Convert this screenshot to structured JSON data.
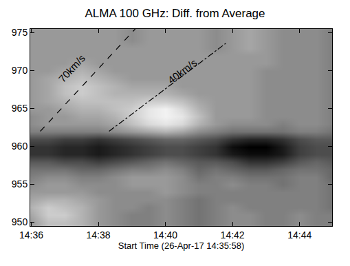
{
  "chart_data": {
    "type": "heatmap",
    "title": "ALMA 100 GHz: Diff. from Average",
    "x_label": "Start Time (26-Apr-17 14:35:58)",
    "color": "gray",
    "grid": false,
    "xlim": [
      35.97,
      44.97
    ],
    "ylim": [
      949.5,
      975.5
    ],
    "xticks": [
      {
        "value": 36,
        "label": "14:36"
      },
      {
        "value": 38,
        "label": "14:38"
      },
      {
        "value": 40,
        "label": "14:40"
      },
      {
        "value": 42,
        "label": "14:42"
      },
      {
        "value": 44,
        "label": "14:44"
      }
    ],
    "yticks": [
      950,
      955,
      960,
      965,
      970,
      975
    ],
    "zlim": [
      0,
      1
    ],
    "x": [
      36,
      36.5,
      37,
      37.5,
      38,
      38.5,
      39,
      39.5,
      40,
      40.5,
      41,
      41.5,
      42,
      42.5,
      43,
      43.5,
      44,
      44.5,
      45
    ],
    "y": [
      950,
      951,
      952,
      953,
      954,
      955,
      956,
      957,
      958,
      959,
      960,
      961,
      962,
      963,
      964,
      965,
      966,
      967,
      968,
      969,
      970,
      971,
      972,
      973,
      974,
      975
    ],
    "cells": [
      [
        0.6,
        0.75,
        0.75,
        0.7,
        0.6,
        0.55,
        0.5,
        0.5,
        0.55,
        0.5,
        0.45,
        0.5,
        0.55,
        0.55,
        0.5,
        0.5,
        0.55,
        0.5,
        0.5
      ],
      [
        0.65,
        0.8,
        0.8,
        0.7,
        0.6,
        0.55,
        0.5,
        0.5,
        0.55,
        0.5,
        0.45,
        0.5,
        0.55,
        0.55,
        0.5,
        0.5,
        0.55,
        0.5,
        0.5
      ],
      [
        0.7,
        0.8,
        0.75,
        0.7,
        0.6,
        0.55,
        0.55,
        0.5,
        0.55,
        0.5,
        0.45,
        0.5,
        0.55,
        0.5,
        0.5,
        0.5,
        0.5,
        0.5,
        0.45
      ],
      [
        0.65,
        0.7,
        0.7,
        0.65,
        0.6,
        0.55,
        0.55,
        0.55,
        0.55,
        0.5,
        0.45,
        0.5,
        0.5,
        0.5,
        0.5,
        0.5,
        0.5,
        0.5,
        0.45
      ],
      [
        0.6,
        0.6,
        0.6,
        0.6,
        0.55,
        0.55,
        0.55,
        0.55,
        0.6,
        0.55,
        0.5,
        0.5,
        0.5,
        0.5,
        0.5,
        0.5,
        0.5,
        0.5,
        0.45
      ],
      [
        0.55,
        0.6,
        0.6,
        0.55,
        0.55,
        0.55,
        0.6,
        0.6,
        0.6,
        0.55,
        0.5,
        0.5,
        0.55,
        0.5,
        0.5,
        0.45,
        0.5,
        0.5,
        0.45
      ],
      [
        0.5,
        0.55,
        0.55,
        0.5,
        0.5,
        0.55,
        0.6,
        0.6,
        0.6,
        0.55,
        0.45,
        0.5,
        0.5,
        0.45,
        0.45,
        0.45,
        0.5,
        0.5,
        0.4
      ],
      [
        0.45,
        0.45,
        0.45,
        0.4,
        0.4,
        0.45,
        0.5,
        0.5,
        0.55,
        0.5,
        0.4,
        0.45,
        0.4,
        0.35,
        0.35,
        0.4,
        0.45,
        0.45,
        0.4
      ],
      [
        0.35,
        0.35,
        0.3,
        0.3,
        0.25,
        0.3,
        0.35,
        0.4,
        0.45,
        0.4,
        0.35,
        0.35,
        0.3,
        0.2,
        0.2,
        0.25,
        0.35,
        0.4,
        0.35
      ],
      [
        0.2,
        0.2,
        0.15,
        0.15,
        0.1,
        0.15,
        0.2,
        0.25,
        0.3,
        0.3,
        0.25,
        0.2,
        0.1,
        0.05,
        0.05,
        0.1,
        0.25,
        0.3,
        0.3
      ],
      [
        0.2,
        0.2,
        0.15,
        0.15,
        0.1,
        0.15,
        0.2,
        0.25,
        0.3,
        0.3,
        0.25,
        0.2,
        0.05,
        0.0,
        0.0,
        0.1,
        0.25,
        0.3,
        0.3
      ],
      [
        0.3,
        0.3,
        0.25,
        0.25,
        0.2,
        0.25,
        0.3,
        0.35,
        0.4,
        0.4,
        0.35,
        0.3,
        0.2,
        0.15,
        0.15,
        0.2,
        0.3,
        0.35,
        0.35
      ],
      [
        0.5,
        0.5,
        0.5,
        0.5,
        0.5,
        0.55,
        0.6,
        0.65,
        0.7,
        0.65,
        0.55,
        0.5,
        0.45,
        0.45,
        0.45,
        0.45,
        0.5,
        0.5,
        0.45
      ],
      [
        0.55,
        0.6,
        0.6,
        0.6,
        0.6,
        0.65,
        0.75,
        0.85,
        0.9,
        0.85,
        0.7,
        0.6,
        0.55,
        0.55,
        0.55,
        0.5,
        0.55,
        0.55,
        0.5
      ],
      [
        0.55,
        0.6,
        0.6,
        0.65,
        0.65,
        0.7,
        0.8,
        0.9,
        0.95,
        0.9,
        0.75,
        0.6,
        0.6,
        0.6,
        0.55,
        0.55,
        0.55,
        0.55,
        0.5
      ],
      [
        0.6,
        0.6,
        0.65,
        0.7,
        0.7,
        0.75,
        0.8,
        0.9,
        0.95,
        0.85,
        0.7,
        0.6,
        0.6,
        0.6,
        0.55,
        0.55,
        0.55,
        0.55,
        0.5
      ],
      [
        0.6,
        0.65,
        0.7,
        0.75,
        0.75,
        0.75,
        0.75,
        0.8,
        0.8,
        0.75,
        0.65,
        0.6,
        0.6,
        0.6,
        0.55,
        0.55,
        0.55,
        0.55,
        0.5
      ],
      [
        0.6,
        0.65,
        0.75,
        0.8,
        0.75,
        0.7,
        0.7,
        0.7,
        0.7,
        0.65,
        0.6,
        0.6,
        0.6,
        0.6,
        0.55,
        0.55,
        0.55,
        0.55,
        0.5
      ],
      [
        0.6,
        0.65,
        0.75,
        0.8,
        0.75,
        0.7,
        0.65,
        0.65,
        0.65,
        0.6,
        0.6,
        0.6,
        0.6,
        0.6,
        0.55,
        0.55,
        0.55,
        0.55,
        0.5
      ],
      [
        0.6,
        0.65,
        0.7,
        0.75,
        0.7,
        0.65,
        0.6,
        0.6,
        0.6,
        0.6,
        0.6,
        0.6,
        0.6,
        0.6,
        0.55,
        0.55,
        0.55,
        0.55,
        0.5
      ],
      [
        0.6,
        0.6,
        0.65,
        0.7,
        0.65,
        0.6,
        0.6,
        0.6,
        0.6,
        0.6,
        0.6,
        0.6,
        0.6,
        0.6,
        0.55,
        0.55,
        0.55,
        0.55,
        0.5
      ],
      [
        0.6,
        0.6,
        0.6,
        0.65,
        0.6,
        0.6,
        0.6,
        0.6,
        0.6,
        0.6,
        0.6,
        0.6,
        0.6,
        0.6,
        0.6,
        0.55,
        0.55,
        0.55,
        0.5
      ],
      [
        0.6,
        0.6,
        0.6,
        0.6,
        0.6,
        0.6,
        0.6,
        0.6,
        0.6,
        0.6,
        0.6,
        0.6,
        0.6,
        0.6,
        0.6,
        0.55,
        0.55,
        0.55,
        0.5
      ],
      [
        0.6,
        0.6,
        0.6,
        0.6,
        0.6,
        0.6,
        0.6,
        0.6,
        0.6,
        0.6,
        0.6,
        0.55,
        0.6,
        0.65,
        0.6,
        0.55,
        0.55,
        0.55,
        0.5
      ],
      [
        0.6,
        0.6,
        0.6,
        0.6,
        0.6,
        0.6,
        0.55,
        0.6,
        0.6,
        0.6,
        0.6,
        0.55,
        0.6,
        0.65,
        0.6,
        0.55,
        0.55,
        0.55,
        0.5
      ],
      [
        0.6,
        0.6,
        0.6,
        0.6,
        0.6,
        0.6,
        0.55,
        0.6,
        0.6,
        0.6,
        0.6,
        0.55,
        0.6,
        0.65,
        0.6,
        0.55,
        0.55,
        0.55,
        0.5
      ]
    ],
    "annotations": [
      {
        "text": "70km/s",
        "line_style": "dashed",
        "x": [
          36.27,
          39.1
        ],
        "y": [
          962,
          975.5
        ],
        "label_x": 37.2,
        "label_y": 970.3
      },
      {
        "text": "40km/s",
        "line_style": "dashdot",
        "x": [
          38.32,
          41.8
        ],
        "y": [
          962,
          973.6
        ],
        "label_x": 40.5,
        "label_y": 969.9
      }
    ]
  }
}
